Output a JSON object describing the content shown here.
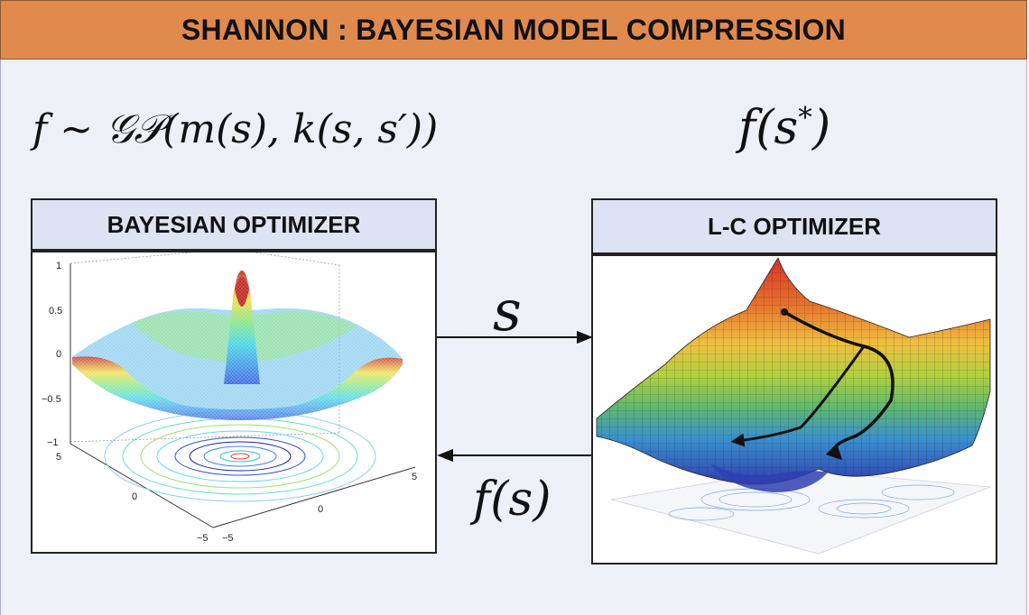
{
  "header": {
    "title": "SHANNON : BAYESIAN MODEL COMPRESSION"
  },
  "equations": {
    "gp_prior": {
      "f": "f",
      "tilde": " ~ ",
      "gp": "𝒢𝒫",
      "args": "(m(s), k(s, s′))"
    },
    "optimum": {
      "base": "f(s",
      "star": "*",
      "close": ")"
    },
    "forward_label": "s",
    "return_label": "f(s)"
  },
  "nodes": {
    "bayesian": {
      "title": "BAYESIAN OPTIMIZER"
    },
    "lc": {
      "title": "L-C OPTIMIZER"
    }
  },
  "bayesian_plot": {
    "z_ticks": [
      "1",
      "0.5",
      "0",
      "−0.5",
      "−1"
    ],
    "x_ticks": [
      "5",
      "0",
      "−5"
    ],
    "y_ticks": [
      "5",
      "0",
      "−5"
    ]
  },
  "colors": {
    "banner": "#e18a4e",
    "panel": "#eef0f8",
    "title_box": "#dde3f2"
  }
}
